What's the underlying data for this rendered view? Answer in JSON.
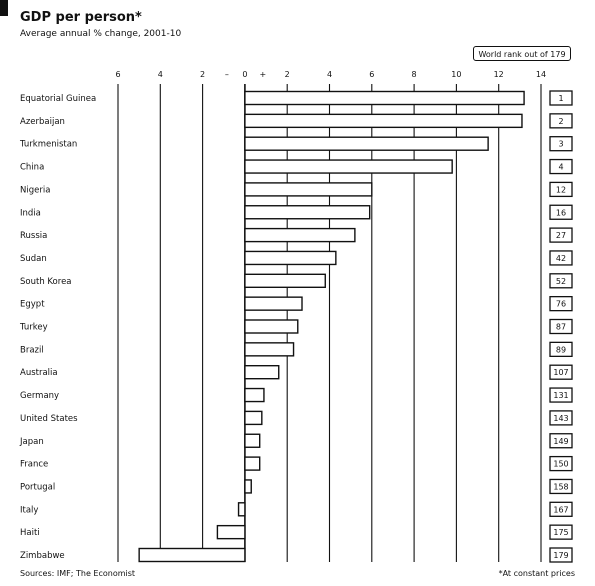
{
  "header": {
    "title": "GDP per person*",
    "subtitle": "Average annual % change, 2001-10"
  },
  "rank_header": "World rank out of 179",
  "footer": {
    "source": "Sources: IMF; The Economist",
    "note": "*At constant prices"
  },
  "colors": {
    "ink": "#111111",
    "bar_fill": "#ffffff",
    "background": "#ffffff"
  },
  "chart_data": {
    "type": "bar",
    "orientation": "horizontal",
    "title": "GDP per person*",
    "subtitle": "Average annual % change, 2001-10",
    "xlim": [
      -6,
      14
    ],
    "xticks": [
      -6,
      -4,
      -2,
      0,
      2,
      4,
      6,
      8,
      10,
      12,
      14
    ],
    "xtick_labels": [
      "6",
      "4",
      "2",
      "0",
      "2",
      "4",
      "6",
      "8",
      "10",
      "12",
      "14"
    ],
    "xtick_signs": {
      "minus": "–",
      "plus": "+"
    },
    "grid": true,
    "categories": [
      "Equatorial Guinea",
      "Azerbaijan",
      "Turkmenistan",
      "China",
      "Nigeria",
      "India",
      "Russia",
      "Sudan",
      "South Korea",
      "Egypt",
      "Turkey",
      "Brazil",
      "Australia",
      "Germany",
      "United States",
      "Japan",
      "France",
      "Portugal",
      "Italy",
      "Haiti",
      "Zimbabwe"
    ],
    "values": [
      13.2,
      13.1,
      11.5,
      9.8,
      6.0,
      5.9,
      5.2,
      4.3,
      3.8,
      2.7,
      2.5,
      2.3,
      1.6,
      0.9,
      0.8,
      0.7,
      0.7,
      0.3,
      -0.3,
      -1.3,
      -5.0
    ],
    "ranks": [
      "1",
      "2",
      "3",
      "4",
      "12",
      "16",
      "27",
      "42",
      "52",
      "76",
      "87",
      "89",
      "107",
      "131",
      "143",
      "149",
      "150",
      "158",
      "167",
      "175",
      "179"
    ]
  }
}
